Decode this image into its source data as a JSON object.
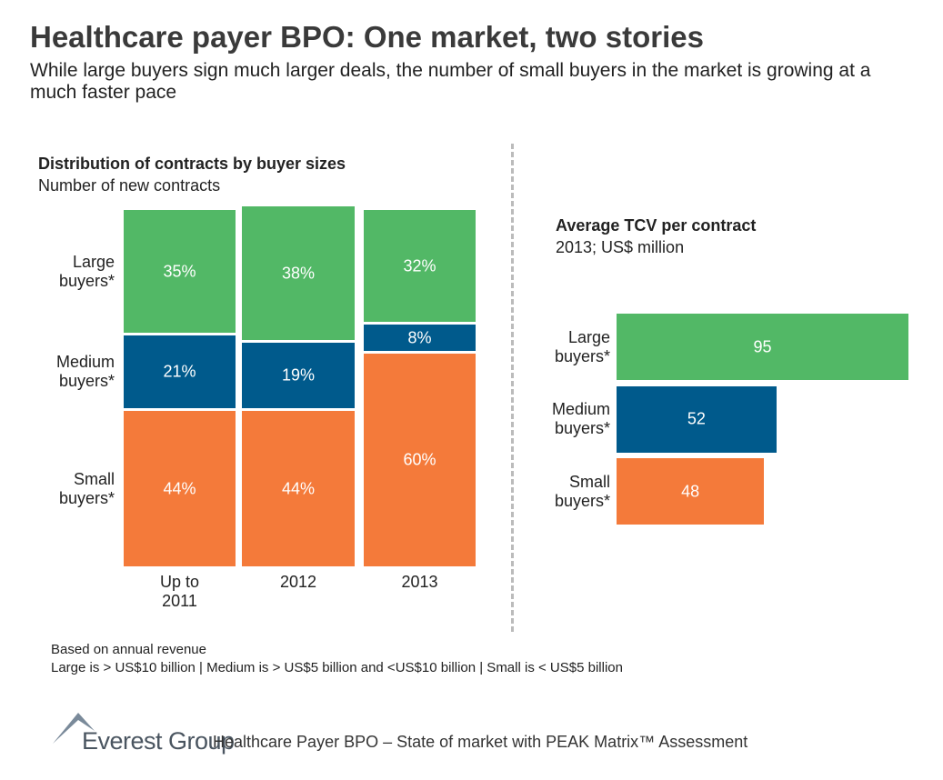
{
  "header": {
    "title": "Healthcare payer BPO: One market, two stories",
    "subtitle": "While large buyers sign much larger deals, the number of small buyers in the market is growing at a much faster pace"
  },
  "chart_data": [
    {
      "type": "stacked-bar",
      "title": "Distribution of contracts by buyer sizes",
      "subtitle": "Number of new contracts",
      "categories": [
        "Up to 2011",
        "2012",
        "2013"
      ],
      "ylim": [
        0,
        100
      ],
      "series": [
        {
          "name": "Small buyers*",
          "color": "#f47a3a",
          "values": [
            44,
            44,
            60
          ],
          "value_labels": [
            "44%",
            "44%",
            "60%"
          ]
        },
        {
          "name": "Medium buyers*",
          "color": "#005a8c",
          "values": [
            21,
            19,
            8
          ],
          "value_labels": [
            "21%",
            "19%",
            "8%"
          ]
        },
        {
          "name": "Large buyers*",
          "color": "#52b866",
          "values": [
            35,
            38,
            32
          ],
          "value_labels": [
            "35%",
            "38%",
            "32%"
          ]
        }
      ]
    },
    {
      "type": "hbar",
      "title": "Average TCV per contract",
      "subtitle": "2013; US$ million",
      "categories": [
        "Large buyers*",
        "Medium buyers*",
        "Small buyers*"
      ],
      "values": [
        95,
        52,
        48
      ],
      "colors": [
        "#52b866",
        "#005a8c",
        "#f47a3a"
      ],
      "xlim": [
        0,
        95
      ]
    }
  ],
  "notes": [
    "Based on annual revenue",
    "Large is > US$10 billion | Medium is > US$5 billion and <US$10 billion | Small is < US$5 billion"
  ],
  "footer": {
    "brand": "Everest Group",
    "text": "Healthcare Payer BPO – State of market with PEAK Matrix™ Assessment"
  }
}
